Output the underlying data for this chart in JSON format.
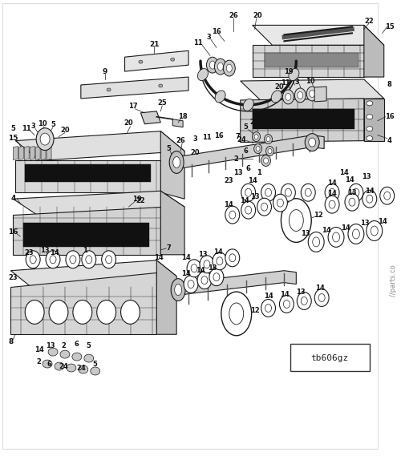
{
  "bg_color": "#ffffff",
  "fg_color": "#1a1a1a",
  "model_label": "tb606gz",
  "watermark": "//parts.co",
  "fig_width": 5.0,
  "fig_height": 5.69,
  "dpi": 100
}
